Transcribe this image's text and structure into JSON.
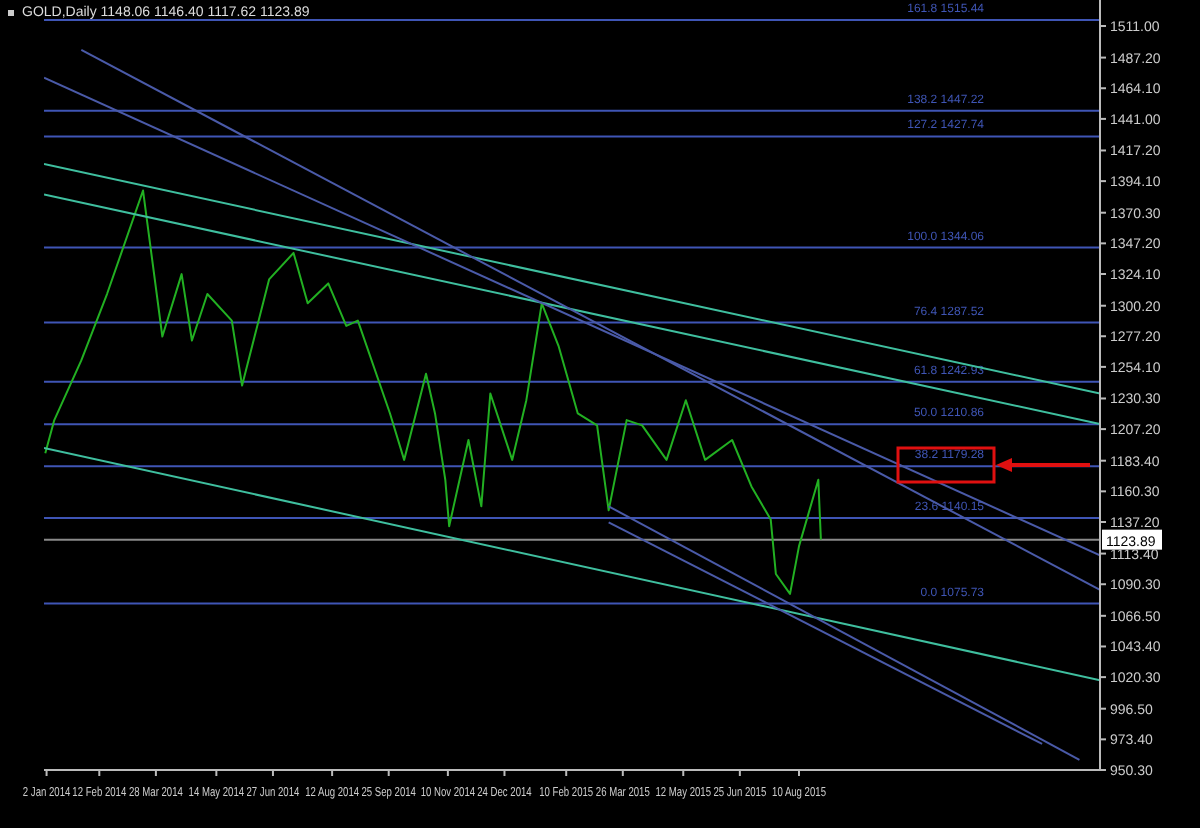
{
  "chart_data": {
    "type": "line",
    "title": "GOLD,Daily 1148.06 1146.40 1117.62 1123.89",
    "x": [
      "2014-01-01",
      "2014-01-08",
      "2014-01-29",
      "2014-02-18",
      "2014-03-18",
      "2014-04-02",
      "2014-04-17",
      "2014-04-25",
      "2014-05-07",
      "2014-05-26",
      "2014-06-03",
      "2014-06-24",
      "2014-07-13",
      "2014-07-24",
      "2014-08-09",
      "2014-08-23",
      "2014-09-01",
      "2014-09-26",
      "2014-10-07",
      "2014-10-24",
      "2014-10-31",
      "2014-11-08",
      "2014-11-11",
      "2014-11-26",
      "2014-12-06",
      "2014-12-13",
      "2014-12-30",
      "2015-01-10",
      "2015-01-22",
      "2015-02-04",
      "2015-02-19",
      "2015-03-06",
      "2015-03-15",
      "2015-03-29",
      "2015-04-10",
      "2015-04-29",
      "2015-05-14",
      "2015-05-29",
      "2015-06-19",
      "2015-07-04",
      "2015-07-19",
      "2015-07-23",
      "2015-08-03",
      "2015-08-10",
      "2015-08-25",
      "2015-08-27"
    ],
    "series": [
      {
        "type": "line",
        "color": "#22b022",
        "values": [
          1189,
          1214,
          1259,
          1309,
          1387,
          1277,
          1324,
          1274,
          1309,
          1289,
          1240,
          1320,
          1340,
          1302,
          1317,
          1285,
          1289,
          1219,
          1184,
          1249,
          1219,
          1169,
          1134,
          1199,
          1149,
          1234,
          1184,
          1229,
          1302,
          1270,
          1219,
          1210,
          1146,
          1214,
          1210,
          1184,
          1229,
          1184,
          1199,
          1164,
          1139,
          1098,
          1083,
          1119,
          1169,
          1123.89
        ]
      },
      {
        "type": "line",
        "color": "#3fbf9f",
        "x": [
          "2013-12-31",
          "2016-03-31"
        ],
        "values": [
          1407,
          1234
        ]
      },
      {
        "type": "line",
        "color": "#3fbf9f",
        "x": [
          "2013-12-31",
          "2016-03-31"
        ],
        "values": [
          1384,
          1211
        ]
      },
      {
        "type": "line",
        "color": "#3fbf9f",
        "x": [
          "2013-12-31",
          "2016-03-31"
        ],
        "values": [
          1193,
          1018
        ]
      },
      {
        "type": "line",
        "color": "#4a5aa8",
        "x": [
          "2013-12-31",
          "2016-03-31"
        ],
        "values": [
          1472,
          1112
        ]
      },
      {
        "type": "line",
        "color": "#4a5aa8",
        "x": [
          "2014-01-29",
          "2016-03-31"
        ],
        "values": [
          1493,
          1086
        ]
      },
      {
        "type": "line",
        "color": "#4a5aa8",
        "x": [
          "2015-03-15",
          "2016-03-15"
        ],
        "values": [
          1149,
          958
        ]
      },
      {
        "type": "line",
        "color": "#4a5aa8",
        "x": [
          "2015-03-15",
          "2016-02-15"
        ],
        "values": [
          1137,
          970
        ]
      }
    ],
    "xlim": [
      "2013-12-31",
      "2016-03-31"
    ],
    "xticks": [
      {
        "value": "2014-01-02",
        "label": "2 Jan 2014"
      },
      {
        "value": "2014-02-12",
        "label": "12 Feb 2014"
      },
      {
        "value": "2014-03-28",
        "label": "28 Mar 2014"
      },
      {
        "value": "2014-05-14",
        "label": "14 May 2014"
      },
      {
        "value": "2014-06-27",
        "label": "27 Jun 2014"
      },
      {
        "value": "2014-08-12",
        "label": "12 Aug 2014"
      },
      {
        "value": "2014-09-25",
        "label": "25 Sep 2014"
      },
      {
        "value": "2014-11-10",
        "label": "10 Nov 2014"
      },
      {
        "value": "2014-12-24",
        "label": "24 Dec 2014"
      },
      {
        "value": "2015-02-10",
        "label": "10 Feb 2015"
      },
      {
        "value": "2015-03-26",
        "label": "26 Mar 2015"
      },
      {
        "value": "2015-05-12",
        "label": "12 May 2015"
      },
      {
        "value": "2015-06-25",
        "label": "25 Jun 2015"
      },
      {
        "value": "2015-08-10",
        "label": "10 Aug 2015"
      }
    ],
    "ylim": [
      950.3,
      1530.6
    ],
    "yticks": [
      {
        "value": 1511,
        "label": "1511.00"
      },
      {
        "value": 1487.2,
        "label": "1487.20"
      },
      {
        "value": 1464.1,
        "label": "1464.10"
      },
      {
        "value": 1441,
        "label": "1441.00"
      },
      {
        "value": 1417.2,
        "label": "1417.20"
      },
      {
        "value": 1394.1,
        "label": "1394.10"
      },
      {
        "value": 1370.3,
        "label": "1370.30"
      },
      {
        "value": 1347.2,
        "label": "1347.20"
      },
      {
        "value": 1324.1,
        "label": "1324.10"
      },
      {
        "value": 1300.2,
        "label": "1300.20"
      },
      {
        "value": 1277.2,
        "label": "1277.20"
      },
      {
        "value": 1254.1,
        "label": "1254.10"
      },
      {
        "value": 1230.3,
        "label": "1230.30"
      },
      {
        "value": 1207.2,
        "label": "1207.20"
      },
      {
        "value": 1183.4,
        "label": "1183.40"
      },
      {
        "value": 1160.3,
        "label": "1160.30"
      },
      {
        "value": 1137.2,
        "label": "1137.20"
      },
      {
        "value": 1113.4,
        "label": "1113.40"
      },
      {
        "value": 1090.3,
        "label": "1090.30"
      },
      {
        "value": 1066.5,
        "label": "1066.50"
      },
      {
        "value": 1043.4,
        "label": "1043.40"
      },
      {
        "value": 1020.3,
        "label": "1020.30"
      },
      {
        "value": 996.5,
        "label": "996.50"
      },
      {
        "value": 973.4,
        "label": "973.40"
      },
      {
        "value": 950.3,
        "label": "950.30"
      }
    ],
    "ref_lines": [
      {
        "axis": "y",
        "value": 1515.44,
        "label": "161.8  1515.44",
        "color": "#3f55b5"
      },
      {
        "axis": "y",
        "value": 1447.22,
        "label": "138.2  1447.22",
        "color": "#3f55b5"
      },
      {
        "axis": "y",
        "value": 1427.74,
        "label": "127.2  1427.74",
        "color": "#3f55b5"
      },
      {
        "axis": "y",
        "value": 1344.06,
        "label": "100.0  1344.06",
        "color": "#3f55b5"
      },
      {
        "axis": "y",
        "value": 1287.52,
        "label": "76.4  1287.52",
        "color": "#3f55b5"
      },
      {
        "axis": "y",
        "value": 1242.93,
        "label": "61.8  1242.93",
        "color": "#3f55b5"
      },
      {
        "axis": "y",
        "value": 1210.86,
        "label": "50.0  1210.86",
        "color": "#3f55b5"
      },
      {
        "axis": "y",
        "value": 1179.28,
        "label": "38.2  1179.28",
        "color": "#3f55b5"
      },
      {
        "axis": "y",
        "value": 1140.15,
        "label": "23.6  1140.15",
        "color": "#3f55b5"
      },
      {
        "axis": "y",
        "value": 1075.73,
        "label": "0.0  1075.73",
        "color": "#3f55b5"
      },
      {
        "axis": "y",
        "value": 1123.89,
        "label": "1123.89",
        "color": "#8a8a8a"
      }
    ],
    "grid": false,
    "legend": false,
    "marker": "none",
    "line_style": "solid"
  }
}
